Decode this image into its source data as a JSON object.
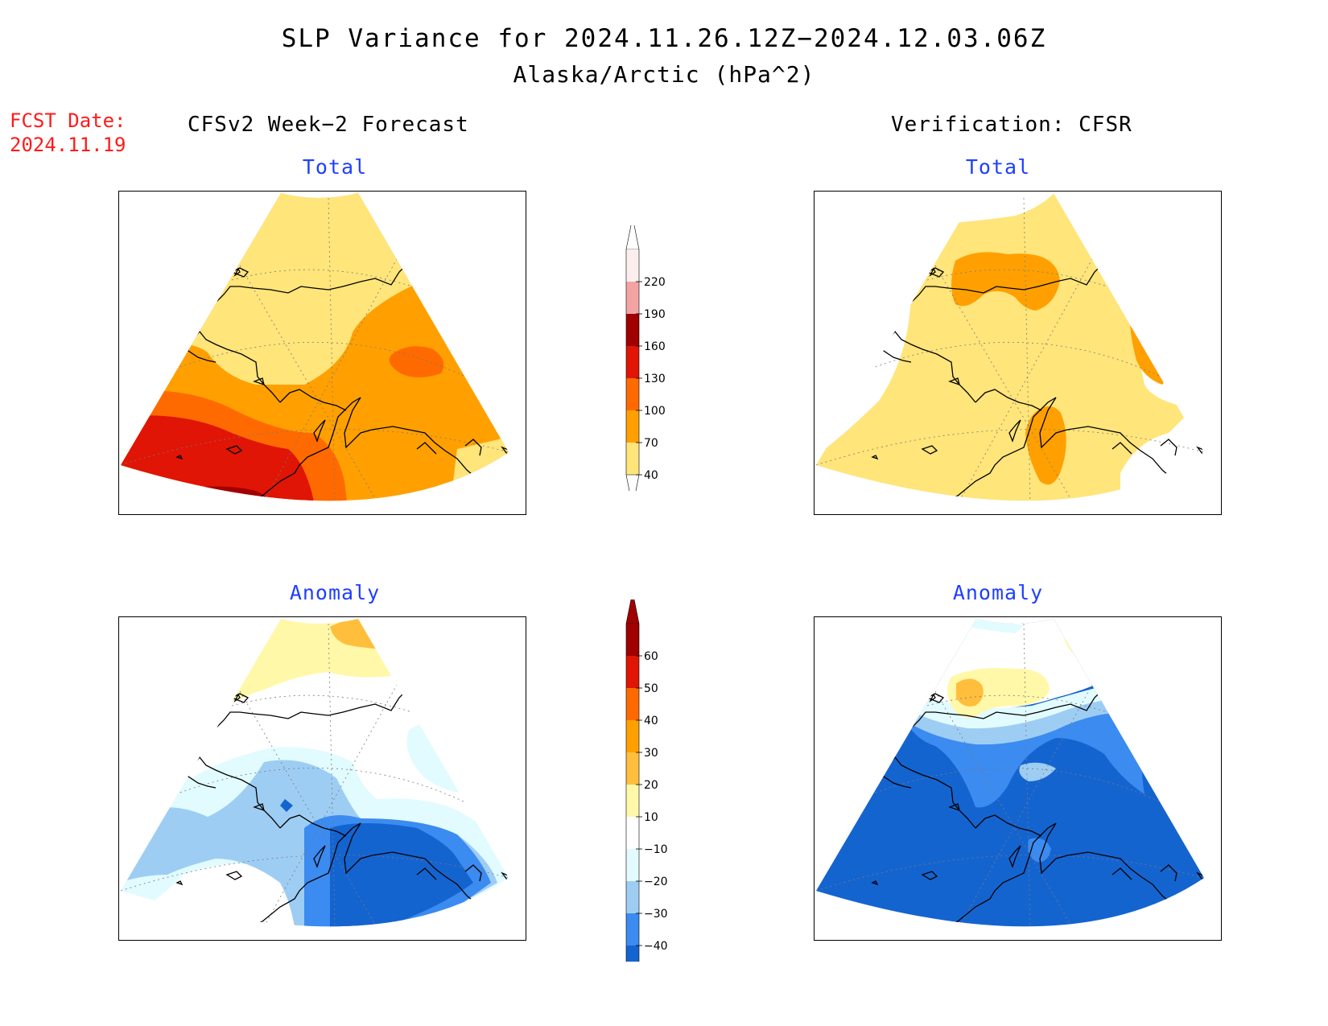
{
  "title": {
    "line1": "SLP Variance for 2024.11.26.12Z−2024.12.03.06Z",
    "line2": "Alaska/Arctic (hPa^2)"
  },
  "fcst_date": {
    "label": "FCST Date:",
    "value": "2024.11.19"
  },
  "columns": {
    "left": "CFSv2 Week−2 Forecast",
    "right": "Verification: CFSR"
  },
  "panels": {
    "tl": "Total",
    "tr": "Total",
    "bl": "Anomaly",
    "br": "Anomaly"
  },
  "total_colorbar": {
    "labels": [
      "220",
      "190",
      "160",
      "130",
      "100",
      "70",
      "40"
    ],
    "colors": [
      "#fdeeee",
      "#f4a3a3",
      "#a00000",
      "#e01505",
      "#ff6a00",
      "#ffa000",
      "#ffe57a"
    ]
  },
  "anomaly_colorbar": {
    "labels": [
      "60",
      "50",
      "40",
      "30",
      "20",
      "10",
      "−10",
      "−20",
      "−30",
      "−40"
    ],
    "colors": [
      "#a00000",
      "#e01505",
      "#ff6a00",
      "#ffa000",
      "#ffbf3c",
      "#fff8a8",
      "#ffffff",
      "#e2fbff",
      "#9ecdf4",
      "#3b8bf0",
      "#1464d0"
    ]
  },
  "palette": {
    "t40": "#ffe57a",
    "t70": "#ffa000",
    "t100": "#ff6a00",
    "t130": "#e01505",
    "t160": "#a00000",
    "a_neg40": "#1464d0",
    "a_neg30": "#3b8bf0",
    "a_neg20": "#9ecdf4",
    "a_neg10": "#e2fbff",
    "a_pos10": "#fff8a8",
    "a_pos20": "#ffbf3c",
    "a_pos30": "#ffa000"
  }
}
